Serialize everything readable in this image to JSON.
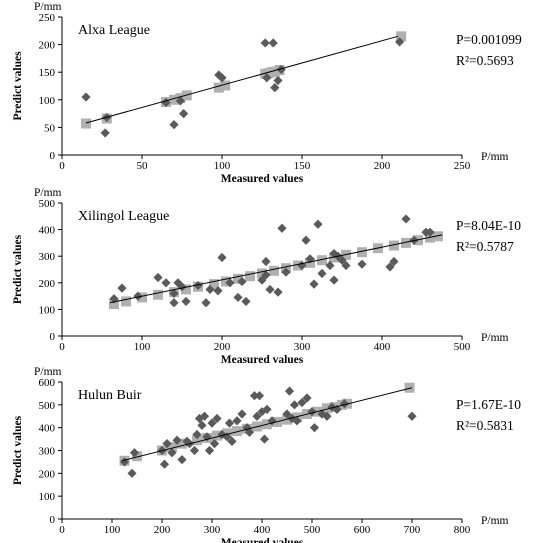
{
  "chart_data": [
    {
      "type": "scatter",
      "title": "Alxa League",
      "xlabel": "Measured values",
      "ylabel": "Predict values",
      "x_unit": "P/mm",
      "y_unit": "P/mm",
      "xlim": [
        0,
        250
      ],
      "ylim": [
        0,
        250
      ],
      "xticks": [
        "0",
        "50",
        "100",
        "150",
        "200",
        "250"
      ],
      "yticks": [
        "0",
        "50",
        "100",
        "150",
        "200",
        "250"
      ],
      "annotations": [
        "P=0.001099",
        "R²=0.5693"
      ],
      "grid": false,
      "colors": {
        "measured": "#5a5a5a",
        "predicted": "#b0b0b0",
        "fit": "#000000"
      },
      "fit_line": [
        [
          15,
          58
        ],
        [
          210,
          215
        ]
      ],
      "series": [
        {
          "name": "",
          "marker": "diamond",
          "points": [
            [
              15,
              105
            ],
            [
              27,
              40
            ],
            [
              28,
              68
            ],
            [
              65,
              95
            ],
            [
              70,
              55
            ],
            [
              74,
              98
            ],
            [
              76,
              75
            ],
            [
              98,
              145
            ],
            [
              100,
              140
            ],
            [
              127,
              203
            ],
            [
              128,
              140
            ],
            [
              132,
              203
            ],
            [
              133,
              122
            ],
            [
              135,
              135
            ],
            [
              137,
              155
            ],
            [
              211,
              205
            ]
          ]
        },
        {
          "name": "",
          "marker": "square",
          "points": [
            [
              15,
              57
            ],
            [
              28,
              66
            ],
            [
              65,
              96
            ],
            [
              70,
              100
            ],
            [
              74,
              103
            ],
            [
              78,
              108
            ],
            [
              98,
              122
            ],
            [
              102,
              126
            ],
            [
              127,
              147
            ],
            [
              129,
              148
            ],
            [
              131,
              150
            ],
            [
              133,
              151
            ],
            [
              136,
              154
            ],
            [
              212,
              215
            ]
          ]
        }
      ]
    },
    {
      "type": "scatter",
      "title": "Xilingol League",
      "xlabel": "Measured values",
      "ylabel": "Predict values",
      "x_unit": "P/mm",
      "y_unit": "P/mm",
      "xlim": [
        0,
        500
      ],
      "ylim": [
        0,
        500
      ],
      "xticks": [
        "0",
        "100",
        "200",
        "300",
        "400",
        "500"
      ],
      "yticks": [
        "0",
        "100",
        "200",
        "300",
        "400",
        "500"
      ],
      "annotations": [
        "P=8.04E-10",
        "R²=0.5787"
      ],
      "grid": false,
      "colors": {
        "measured": "#5a5a5a",
        "predicted": "#b0b0b0",
        "fit": "#000000"
      },
      "fit_line": [
        [
          60,
          125
        ],
        [
          475,
          380
        ]
      ],
      "series": [
        {
          "name": "",
          "marker": "diamond",
          "points": [
            [
              65,
              140
            ],
            [
              75,
              180
            ],
            [
              95,
              150
            ],
            [
              120,
              220
            ],
            [
              130,
              200
            ],
            [
              140,
              160
            ],
            [
              140,
              125
            ],
            [
              145,
              200
            ],
            [
              150,
              185
            ],
            [
              155,
              130
            ],
            [
              170,
              190
            ],
            [
              180,
              125
            ],
            [
              185,
              175
            ],
            [
              195,
              170
            ],
            [
              200,
              295
            ],
            [
              210,
              200
            ],
            [
              220,
              145
            ],
            [
              225,
              205
            ],
            [
              230,
              130
            ],
            [
              250,
              210
            ],
            [
              255,
              230
            ],
            [
              255,
              280
            ],
            [
              260,
              175
            ],
            [
              270,
              165
            ],
            [
              275,
              405
            ],
            [
              280,
              240
            ],
            [
              300,
              265
            ],
            [
              305,
              360
            ],
            [
              310,
              290
            ],
            [
              315,
              195
            ],
            [
              320,
              420
            ],
            [
              325,
              235
            ],
            [
              335,
              265
            ],
            [
              340,
              310
            ],
            [
              340,
              210
            ],
            [
              345,
              300
            ],
            [
              350,
              285
            ],
            [
              355,
              265
            ],
            [
              375,
              270
            ],
            [
              410,
              260
            ],
            [
              415,
              280
            ],
            [
              430,
              440
            ],
            [
              440,
              360
            ],
            [
              455,
              390
            ],
            [
              460,
              390
            ]
          ]
        },
        {
          "name": "",
          "marker": "square",
          "points": [
            [
              65,
              120
            ],
            [
              80,
              130
            ],
            [
              100,
              145
            ],
            [
              120,
              155
            ],
            [
              140,
              165
            ],
            [
              155,
              175
            ],
            [
              170,
              185
            ],
            [
              190,
              195
            ],
            [
              205,
              205
            ],
            [
              220,
              215
            ],
            [
              235,
              225
            ],
            [
              250,
              235
            ],
            [
              265,
              245
            ],
            [
              280,
              255
            ],
            [
              295,
              265
            ],
            [
              310,
              275
            ],
            [
              325,
              285
            ],
            [
              340,
              295
            ],
            [
              355,
              305
            ],
            [
              375,
              315
            ],
            [
              395,
              330
            ],
            [
              415,
              340
            ],
            [
              430,
              350
            ],
            [
              445,
              360
            ],
            [
              460,
              370
            ],
            [
              470,
              375
            ]
          ]
        }
      ]
    },
    {
      "type": "scatter",
      "title": "Hulun Buir",
      "xlabel": "Measured values",
      "ylabel": "Predict values",
      "x_unit": "P/mm",
      "y_unit": "P/mm",
      "xlim": [
        0,
        800
      ],
      "ylim": [
        0,
        600
      ],
      "xticks": [
        "0",
        "100",
        "200",
        "300",
        "400",
        "500",
        "600",
        "700",
        "800"
      ],
      "yticks": [
        "0",
        "100",
        "200",
        "300",
        "400",
        "500",
        "600"
      ],
      "annotations": [
        "P=1.67E-10",
        "R²=0.5831"
      ],
      "grid": false,
      "colors": {
        "measured": "#5a5a5a",
        "predicted": "#b0b0b0",
        "fit": "#000000"
      },
      "fit_line": [
        [
          120,
          255
        ],
        [
          700,
          575
        ]
      ],
      "series": [
        {
          "name": "",
          "marker": "diamond",
          "points": [
            [
              125,
              250
            ],
            [
              140,
              200
            ],
            [
              145,
              290
            ],
            [
              200,
              300
            ],
            [
              205,
              240
            ],
            [
              210,
              330
            ],
            [
              220,
              290
            ],
            [
              230,
              345
            ],
            [
              240,
              260
            ],
            [
              250,
              340
            ],
            [
              255,
              330
            ],
            [
              265,
              300
            ],
            [
              270,
              370
            ],
            [
              275,
              440
            ],
            [
              280,
              410
            ],
            [
              285,
              450
            ],
            [
              290,
              360
            ],
            [
              295,
              300
            ],
            [
              300,
              420
            ],
            [
              305,
              330
            ],
            [
              310,
              440
            ],
            [
              320,
              370
            ],
            [
              330,
              360
            ],
            [
              335,
              420
            ],
            [
              340,
              340
            ],
            [
              350,
              430
            ],
            [
              360,
              460
            ],
            [
              370,
              400
            ],
            [
              375,
              380
            ],
            [
              385,
              540
            ],
            [
              390,
              450
            ],
            [
              395,
              540
            ],
            [
              400,
              470
            ],
            [
              405,
              350
            ],
            [
              410,
              480
            ],
            [
              420,
              430
            ],
            [
              450,
              460
            ],
            [
              455,
              560
            ],
            [
              460,
              440
            ],
            [
              465,
              500
            ],
            [
              470,
              430
            ],
            [
              480,
              510
            ],
            [
              490,
              530
            ],
            [
              500,
              470
            ],
            [
              505,
              400
            ],
            [
              520,
              460
            ],
            [
              530,
              450
            ],
            [
              540,
              490
            ],
            [
              550,
              480
            ],
            [
              565,
              505
            ],
            [
              700,
              450
            ]
          ]
        },
        {
          "name": "",
          "marker": "square",
          "points": [
            [
              125,
              255
            ],
            [
              150,
              275
            ],
            [
              200,
              300
            ],
            [
              220,
              315
            ],
            [
              240,
              330
            ],
            [
              270,
              345
            ],
            [
              290,
              355
            ],
            [
              310,
              365
            ],
            [
              330,
              375
            ],
            [
              350,
              385
            ],
            [
              370,
              395
            ],
            [
              390,
              405
            ],
            [
              410,
              415
            ],
            [
              430,
              425
            ],
            [
              450,
              435
            ],
            [
              470,
              445
            ],
            [
              490,
              460
            ],
            [
              510,
              470
            ],
            [
              530,
              485
            ],
            [
              545,
              490
            ],
            [
              560,
              500
            ],
            [
              570,
              505
            ],
            [
              695,
              575
            ]
          ]
        }
      ]
    }
  ]
}
